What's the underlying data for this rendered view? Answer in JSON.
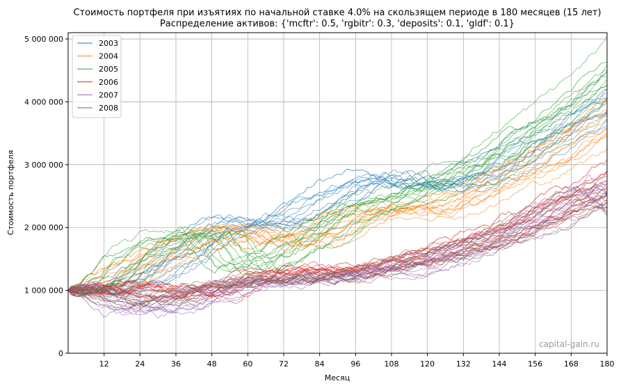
{
  "chart_data": {
    "type": "line",
    "title": "Стоимость портфеля при изъятиях по начальной ставке 4.0% на скользящем периоде в 180 месяцев (15 лет)",
    "subtitle": "Распределение активов: {'mcftr': 0.5, 'rgbitr': 0.3, 'deposits': 0.1, 'gldf': 0.1}",
    "xlabel": "Месяц",
    "ylabel": "Стоимость портфеля",
    "xlim": [
      0,
      180
    ],
    "ylim": [
      0,
      5100000
    ],
    "x_ticks": [
      12,
      24,
      36,
      48,
      60,
      72,
      84,
      96,
      108,
      120,
      132,
      144,
      156,
      168,
      180
    ],
    "x_tick_labels": [
      "12",
      "24",
      "36",
      "48",
      "60",
      "72",
      "84",
      "96",
      "108",
      "120",
      "132",
      "144",
      "156",
      "168",
      "180"
    ],
    "y_ticks": [
      0,
      1000000,
      2000000,
      3000000,
      4000000,
      5000000
    ],
    "y_tick_labels": [
      "0",
      "1 000 000",
      "2 000 000",
      "3 000 000",
      "4 000 000",
      "5 000 000"
    ],
    "grid": true,
    "legend_position": "top-left",
    "watermark": "capital-gain.ru",
    "series": [
      {
        "name": "2003",
        "color": "#1f77b4",
        "x": [
          0,
          12,
          24,
          36,
          48,
          60,
          72,
          84,
          96,
          108,
          120,
          132,
          144,
          156,
          168,
          180
        ],
        "values": [
          1000000,
          1150000,
          1450000,
          1850000,
          2150000,
          2050000,
          2350000,
          2700000,
          2850000,
          2650000,
          2700000,
          2950000,
          3300000,
          3650000,
          3950000,
          4400000
        ]
      },
      {
        "name": "2004",
        "color": "#ff7f0e",
        "x": [
          0,
          12,
          24,
          36,
          48,
          60,
          72,
          84,
          96,
          108,
          120,
          132,
          144,
          156,
          168,
          180
        ],
        "values": [
          1000000,
          1350000,
          1600000,
          1850000,
          2000000,
          1700000,
          1850000,
          2150000,
          2300000,
          2250000,
          2400000,
          2700000,
          2950000,
          3250000,
          3600000,
          4000000
        ]
      },
      {
        "name": "2005",
        "color": "#2ca02c",
        "x": [
          0,
          12,
          24,
          36,
          48,
          60,
          72,
          84,
          96,
          108,
          120,
          132,
          144,
          156,
          168,
          180
        ],
        "values": [
          1000000,
          1550000,
          1850000,
          1950000,
          1300000,
          1550000,
          1900000,
          2250000,
          2450000,
          2600000,
          2850000,
          3100000,
          3500000,
          3850000,
          4300000,
          4850000
        ]
      },
      {
        "name": "2006",
        "color": "#d62728",
        "x": [
          0,
          12,
          24,
          36,
          48,
          60,
          72,
          84,
          96,
          108,
          120,
          132,
          144,
          156,
          168,
          180
        ],
        "values": [
          1000000,
          1100000,
          1000000,
          900000,
          1150000,
          1300000,
          1350000,
          1300000,
          1400000,
          1550000,
          1700000,
          1900000,
          2100000,
          2400000,
          2650000,
          3050000
        ]
      },
      {
        "name": "2007",
        "color": "#9467bd",
        "x": [
          0,
          12,
          24,
          36,
          48,
          60,
          72,
          84,
          96,
          108,
          120,
          132,
          144,
          156,
          168,
          180
        ],
        "values": [
          1000000,
          650000,
          750000,
          950000,
          1100000,
          1150000,
          1200000,
          1250000,
          1300000,
          1450000,
          1600000,
          1800000,
          2050000,
          2350000,
          2700000,
          2250000
        ]
      },
      {
        "name": "2008",
        "color": "#8c564b",
        "x": [
          0,
          12,
          24,
          36,
          48,
          60,
          72,
          84,
          96,
          108,
          120,
          132,
          144,
          156,
          168,
          180
        ],
        "values": [
          1000000,
          750000,
          900000,
          1050000,
          1150000,
          1200000,
          1200000,
          1250000,
          1350000,
          1500000,
          1650000,
          1800000,
          2050000,
          2300000,
          2600000,
          2200000
        ]
      }
    ]
  }
}
